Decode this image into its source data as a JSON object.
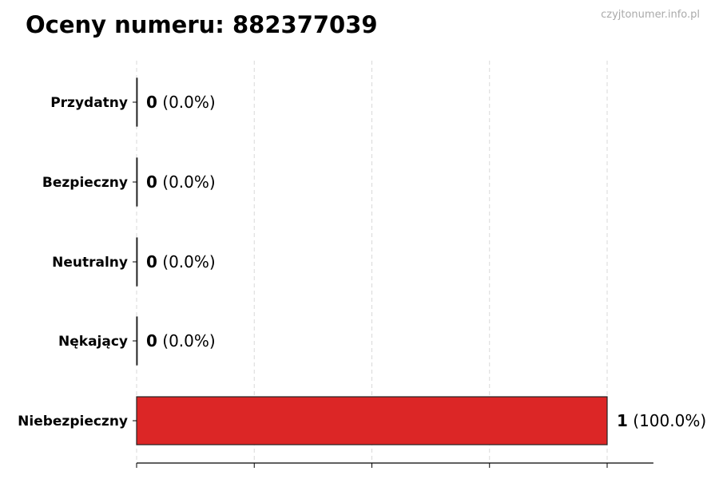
{
  "chart_data": {
    "type": "bar",
    "orientation": "horizontal",
    "title": "Oceny numeru: 882377039",
    "watermark": "czyjtonumer.info.pl",
    "categories": [
      "Przydatny",
      "Bezpieczny",
      "Neutralny",
      "Nękający",
      "Niebezpieczny"
    ],
    "values": [
      0,
      0,
      0,
      0,
      1
    ],
    "value_labels": [
      "0",
      "0",
      "0",
      "0",
      "1"
    ],
    "percent_labels": [
      "(0.0%)",
      "(0.0%)",
      "(0.0%)",
      "(0.0%)",
      "(100.0%)"
    ],
    "colors": [
      "#2ca02c",
      "#1f77b4",
      "#7f7f7f",
      "#ff7f0e",
      "#dc2626"
    ],
    "xlim": [
      0,
      1.1
    ],
    "xticks": [
      0,
      0.25,
      0.5,
      0.75,
      1
    ],
    "grid": "x-dashed",
    "xlabel": "",
    "ylabel": ""
  }
}
